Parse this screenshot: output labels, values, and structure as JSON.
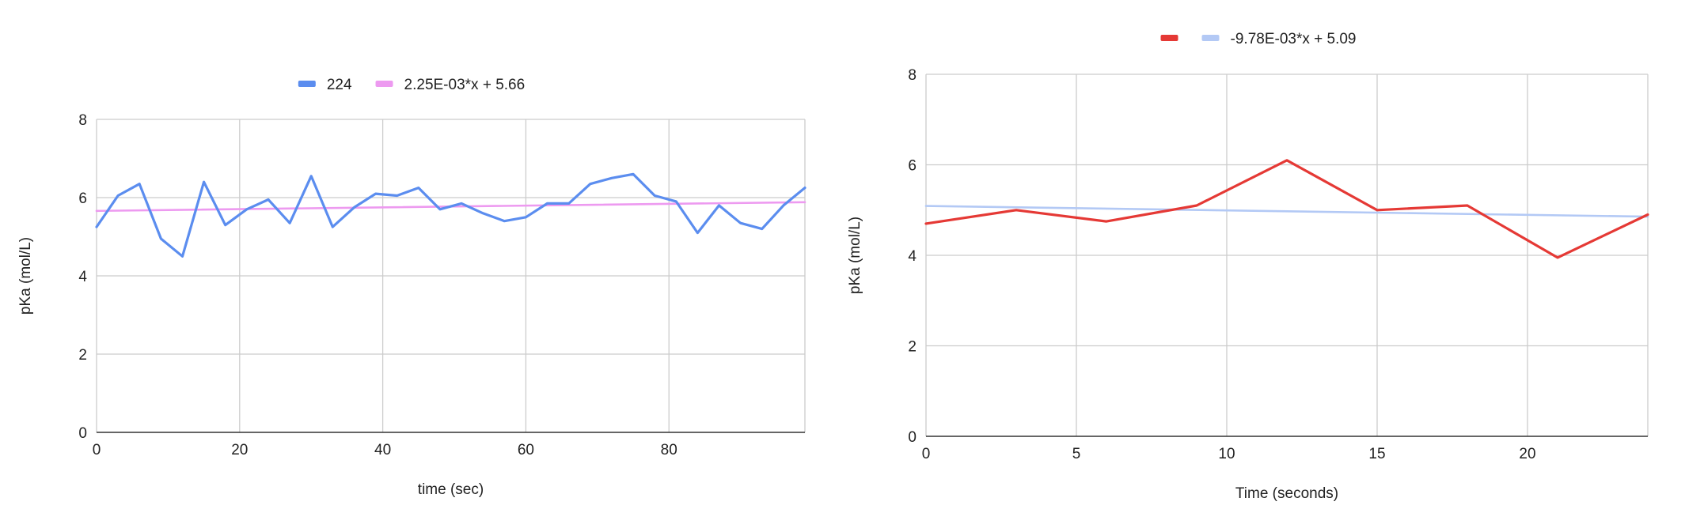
{
  "chart_data": [
    {
      "type": "line",
      "title": "",
      "xlabel": "time (sec)",
      "ylabel": "pKa (mol/L)",
      "xlim": [
        0,
        99
      ],
      "ylim": [
        0,
        8
      ],
      "x_ticks": [
        0,
        20,
        40,
        60,
        80
      ],
      "y_ticks": [
        0,
        2,
        4,
        6,
        8
      ],
      "grid": true,
      "legend_position": "top",
      "series": [
        {
          "name": "224",
          "color": "#5b8def",
          "x": [
            0,
            3,
            6,
            9,
            12,
            15,
            18,
            21,
            24,
            27,
            30,
            33,
            36,
            39,
            42,
            45,
            48,
            51,
            54,
            57,
            60,
            63,
            66,
            69,
            72,
            75,
            78,
            81,
            84,
            87,
            90,
            93,
            96,
            99
          ],
          "y": [
            5.25,
            6.05,
            6.35,
            4.95,
            4.5,
            6.4,
            5.3,
            5.7,
            5.95,
            5.35,
            6.55,
            5.25,
            5.75,
            6.1,
            6.05,
            6.25,
            5.7,
            5.85,
            5.6,
            5.4,
            5.5,
            5.85,
            5.85,
            6.35,
            6.5,
            6.6,
            6.05,
            5.9,
            5.1,
            5.8,
            5.35,
            5.2,
            5.8,
            6.25
          ]
        },
        {
          "name": "2.25E-03*x + 5.66",
          "color": "#ed9af0",
          "trendline": true,
          "x": [
            0,
            99
          ],
          "y": [
            5.66,
            5.883
          ]
        }
      ]
    },
    {
      "type": "line",
      "title": "",
      "xlabel": "Time (seconds)",
      "ylabel": "pKa (mol/L)",
      "xlim": [
        0,
        24
      ],
      "ylim": [
        0,
        8
      ],
      "x_ticks": [
        0,
        5,
        10,
        15,
        20
      ],
      "y_ticks": [
        0,
        2,
        4,
        6,
        8
      ],
      "grid": true,
      "legend_position": "top",
      "series": [
        {
          "name": "",
          "color": "#e53935",
          "x": [
            0,
            3,
            6,
            9,
            12,
            15,
            18,
            21,
            24
          ],
          "y": [
            4.7,
            5.0,
            4.75,
            5.1,
            6.1,
            5.0,
            5.1,
            3.95,
            4.9
          ]
        },
        {
          "name": "-9.78E-03*x + 5.09",
          "color": "#b3c9f5",
          "trendline": true,
          "x": [
            0,
            24
          ],
          "y": [
            5.09,
            4.855
          ]
        }
      ]
    }
  ]
}
